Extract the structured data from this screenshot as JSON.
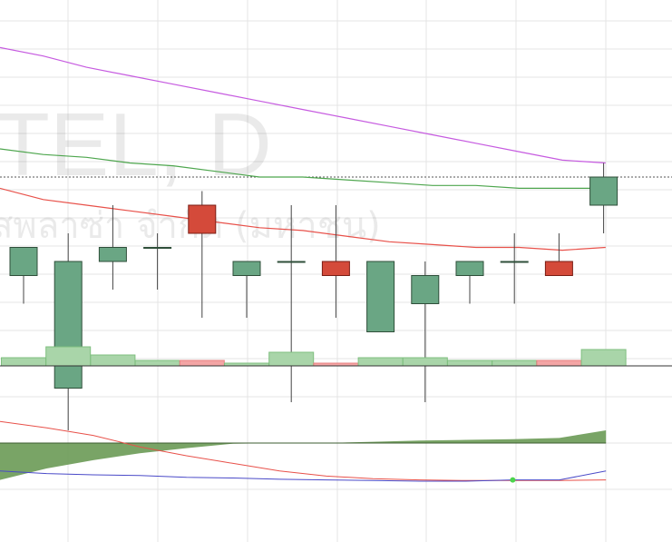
{
  "watermark": {
    "symbol": "TEL, D",
    "company": "สพลาซ่า จำกัด (มหาชน)"
  },
  "colors": {
    "up": "#6aa684",
    "up_border": "#2f4f3a",
    "down": "#d44a3a",
    "down_border": "#7a1d14",
    "vol_up": "#a9d5a9",
    "vol_down": "#f4a5a5",
    "ma_slow": "#c65be0",
    "ma_mid": "#4ea64e",
    "ma_fast": "#e8514a",
    "macd_area": "#6a9a55",
    "macd_line": "#4a4ac8",
    "signal_line": "#e8514a",
    "grid": "#e4e4e4",
    "baseline": "#333333"
  },
  "chart_data": [
    {
      "type": "candlestick",
      "price_range": [
        -9,
        3.5
      ],
      "price_dashed_level": 0,
      "candles": [
        {
          "o": -3.5,
          "h": -2.5,
          "l": -4.5,
          "c": -2.5
        },
        {
          "o": -7.5,
          "h": -2.0,
          "l": -9.0,
          "c": -3.0
        },
        {
          "o": -3.0,
          "h": -1.0,
          "l": -4.0,
          "c": -2.5
        },
        {
          "o": -2.5,
          "h": -2.0,
          "l": -4.0,
          "c": -2.5
        },
        {
          "o": -1.0,
          "h": -0.5,
          "l": -5.0,
          "c": -2.0
        },
        {
          "o": -3.5,
          "h": -3.0,
          "l": -5.0,
          "c": -3.0
        },
        {
          "o": -3.0,
          "h": -1.0,
          "l": -8.0,
          "c": -3.0
        },
        {
          "o": -3.0,
          "h": -1.0,
          "l": -5.0,
          "c": -3.5
        },
        {
          "o": -5.5,
          "h": -3.0,
          "l": -5.5,
          "c": -3.0
        },
        {
          "o": -4.5,
          "h": -3.0,
          "l": -8.0,
          "c": -3.5
        },
        {
          "o": -3.5,
          "h": -3.0,
          "l": -4.5,
          "c": -3.0
        },
        {
          "o": -3.0,
          "h": -2.0,
          "l": -4.5,
          "c": -3.0
        },
        {
          "o": -3.0,
          "h": -2.0,
          "l": -3.5,
          "c": -3.5
        },
        {
          "o": -1.0,
          "h": 0.5,
          "l": -2.0,
          "c": 0.0
        }
      ],
      "ma_slow": [
        4.6,
        4.3,
        3.9,
        3.6,
        3.3,
        3.0,
        2.7,
        2.4,
        2.1,
        1.8,
        1.5,
        1.2,
        0.9,
        0.6,
        0.5
      ],
      "ma_mid": [
        1.0,
        0.8,
        0.7,
        0.5,
        0.4,
        0.2,
        0.0,
        0.0,
        -0.1,
        -0.2,
        -0.3,
        -0.3,
        -0.4,
        -0.4,
        -0.4
      ],
      "ma_fast": [
        -0.4,
        -0.8,
        -1.0,
        -1.2,
        -1.4,
        -1.6,
        -1.8,
        -1.9,
        -2.1,
        -2.3,
        -2.4,
        -2.5,
        -2.5,
        -2.6,
        -2.5
      ]
    },
    {
      "type": "bar",
      "series_name": "volume",
      "values": [
        3,
        7,
        4,
        2,
        2,
        1,
        5,
        1,
        3,
        3,
        2,
        2,
        2,
        6
      ],
      "direction": [
        "up",
        "up",
        "up",
        "up",
        "down",
        "up",
        "up",
        "down",
        "up",
        "up",
        "up",
        "up",
        "down",
        "up"
      ]
    },
    {
      "type": "area",
      "series_name": "macd",
      "range": [
        -6,
        4
      ],
      "hist_points": [
        -5.8,
        -4.0,
        -2.7,
        -1.6,
        -0.8,
        -0.1,
        0.0,
        0.0,
        0.2,
        0.4,
        0.5,
        0.6,
        0.8,
        2.0
      ],
      "macd": [
        -4.4,
        -4.8,
        -5.0,
        -5.1,
        -5.4,
        -5.5,
        -5.7,
        -5.8,
        -5.9,
        -6.0,
        -6.0,
        -5.8,
        -5.8,
        -4.4
      ],
      "signal": [
        3.4,
        2.4,
        1.2,
        -0.6,
        -2.0,
        -3.2,
        -4.4,
        -5.2,
        -5.6,
        -5.8,
        -5.9,
        -5.9,
        -5.9,
        -5.8
      ],
      "cross_marker_index": 11
    }
  ]
}
